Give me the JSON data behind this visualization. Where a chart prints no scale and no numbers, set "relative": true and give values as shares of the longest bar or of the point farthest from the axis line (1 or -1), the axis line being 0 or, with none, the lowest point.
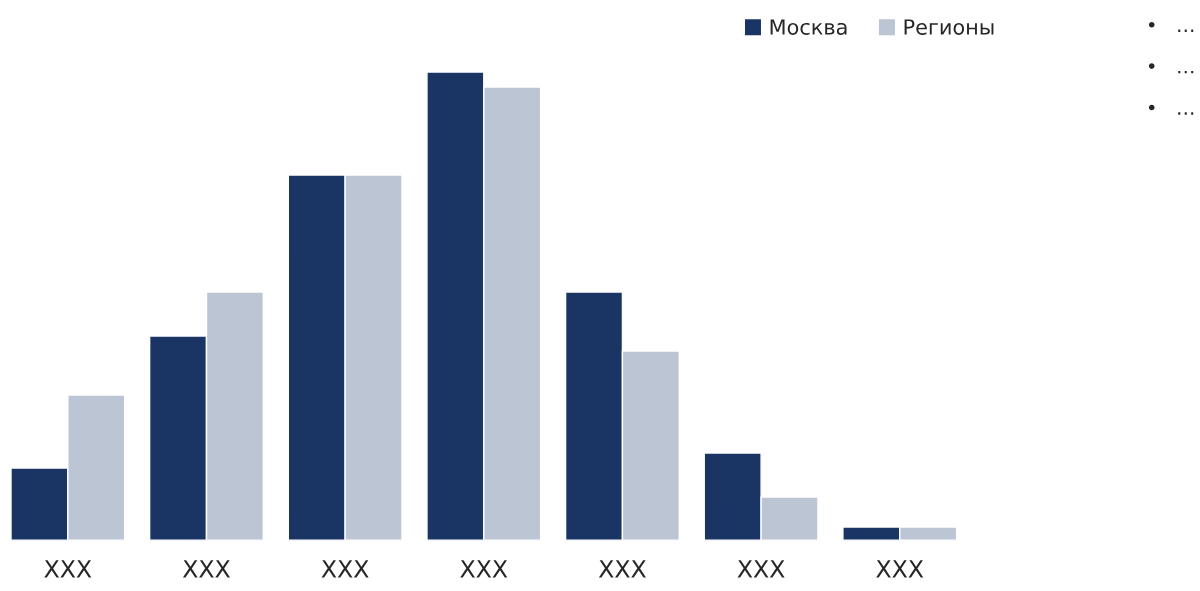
{
  "chart_data": {
    "type": "bar",
    "relative": true,
    "categories": [
      "XXX",
      "XXX",
      "XXX",
      "XXX",
      "XXX",
      "XXX",
      "XXX"
    ],
    "series": [
      {
        "name": "Москва",
        "color": "#1a3564",
        "values": [
          0.154,
          0.436,
          0.78,
          1,
          0.53,
          0.186,
          0.028
        ]
      },
      {
        "name": "Регионы",
        "color": "#bcc5d3",
        "values": [
          0.31,
          0.53,
          0.78,
          0.968,
          0.404,
          0.092,
          0.028
        ]
      }
    ],
    "legend": "top right",
    "grid": false,
    "annotations": [
      "•   …",
      "•   …",
      "•   …"
    ]
  }
}
